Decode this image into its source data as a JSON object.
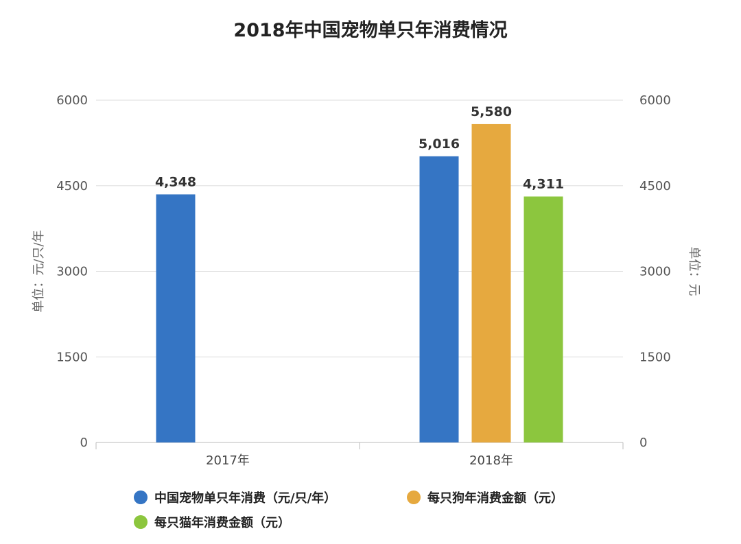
{
  "chart_data": {
    "type": "bar",
    "title": "2018年中国宠物单只年消费情况",
    "categories": [
      "2017年",
      "2018年"
    ],
    "series": [
      {
        "name": "中国宠物单只年消费（元/只/年）",
        "values": [
          4348,
          5016
        ],
        "labels": [
          "4,348",
          "5,016"
        ],
        "color": "#3575c4",
        "axis": "left"
      },
      {
        "name": "每只狗年消费金额（元）",
        "values": [
          null,
          5580
        ],
        "labels": [
          "",
          "5,580"
        ],
        "color": "#e6a93f",
        "axis": "right"
      },
      {
        "name": "每只猫年消费金额（元）",
        "values": [
          null,
          4311
        ],
        "labels": [
          "",
          "4,311"
        ],
        "color": "#8cc63e",
        "axis": "right"
      }
    ],
    "ylabel": "单位：元/只/年",
    "ylabel_right": "单位：元",
    "ylim": [
      0,
      6000
    ],
    "yticks": [
      0,
      1500,
      3000,
      4500,
      6000
    ],
    "grid": true,
    "legend_position": "bottom"
  }
}
